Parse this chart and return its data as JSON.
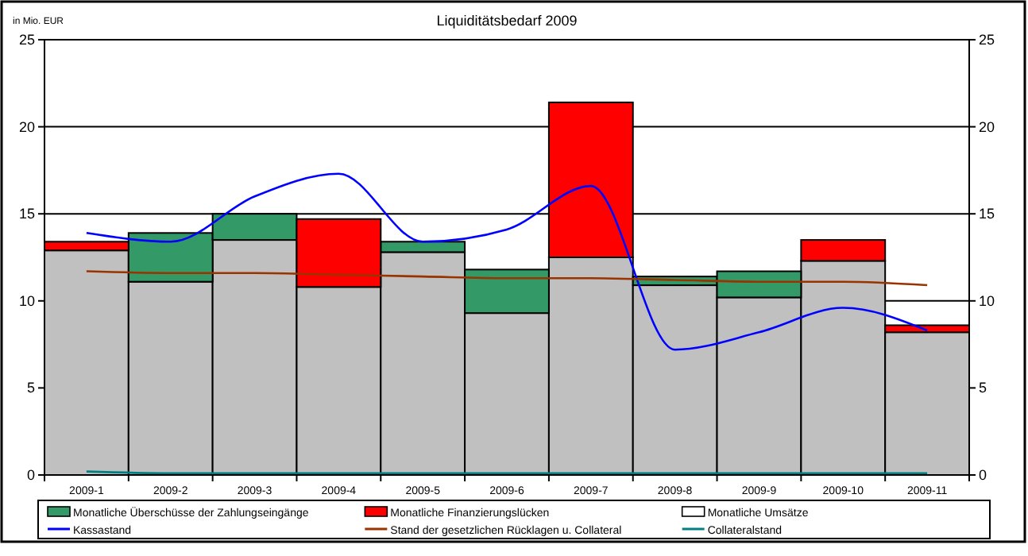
{
  "chart_data": {
    "type": "bar",
    "title": "Liquiditätsbedarf 2009",
    "ylabel": "in Mio. EUR",
    "categories": [
      "2009-1",
      "2009-2",
      "2009-3",
      "2009-4",
      "2009-5",
      "2009-6",
      "2009-7",
      "2009-8",
      "2009-9",
      "2009-10",
      "2009-11"
    ],
    "stacked": true,
    "series": [
      {
        "name": "Monatliche Umsätze",
        "color": "#c0c0c0",
        "values": [
          12.9,
          11.1,
          13.5,
          10.8,
          12.8,
          9.3,
          12.5,
          10.9,
          10.2,
          12.3,
          8.2
        ]
      },
      {
        "name": "Monatliche Überschüsse der Zahlungseingänge",
        "color": "#339966",
        "values": [
          0,
          2.8,
          1.5,
          0,
          0.6,
          2.5,
          0,
          0.5,
          1.5,
          0,
          0
        ]
      },
      {
        "name": "Monatliche Finanzierungslücken",
        "color": "#ff0000",
        "values": [
          0.5,
          0,
          0,
          3.9,
          0,
          0,
          8.9,
          0,
          0,
          1.2,
          0.4
        ]
      },
      {
        "name": "Kassastand",
        "type": "line",
        "color": "#0000ff",
        "values": [
          13.9,
          13.4,
          16.0,
          17.3,
          13.4,
          14.1,
          16.6,
          7.2,
          8.2,
          9.6,
          8.3
        ]
      },
      {
        "name": "Stand der gesetzlichen Rücklagen u. Collateral",
        "type": "line",
        "color": "#993300",
        "values": [
          11.7,
          11.6,
          11.6,
          11.5,
          11.4,
          11.3,
          11.3,
          11.2,
          11.1,
          11.1,
          10.9
        ]
      },
      {
        "name": "Collateralstand",
        "type": "line",
        "color": "#008080",
        "values": [
          0.2,
          0.1,
          0.1,
          0.1,
          0.1,
          0.1,
          0.1,
          0.1,
          0.1,
          0.1,
          0.1
        ]
      }
    ],
    "ylim": [
      0,
      25
    ],
    "yticks": [
      0,
      5,
      10,
      15,
      20,
      25
    ],
    "y2lim": [
      0,
      25
    ],
    "y2ticks": [
      0,
      5,
      10,
      15,
      20,
      25
    ],
    "grid": "y",
    "legend": "bottom"
  }
}
